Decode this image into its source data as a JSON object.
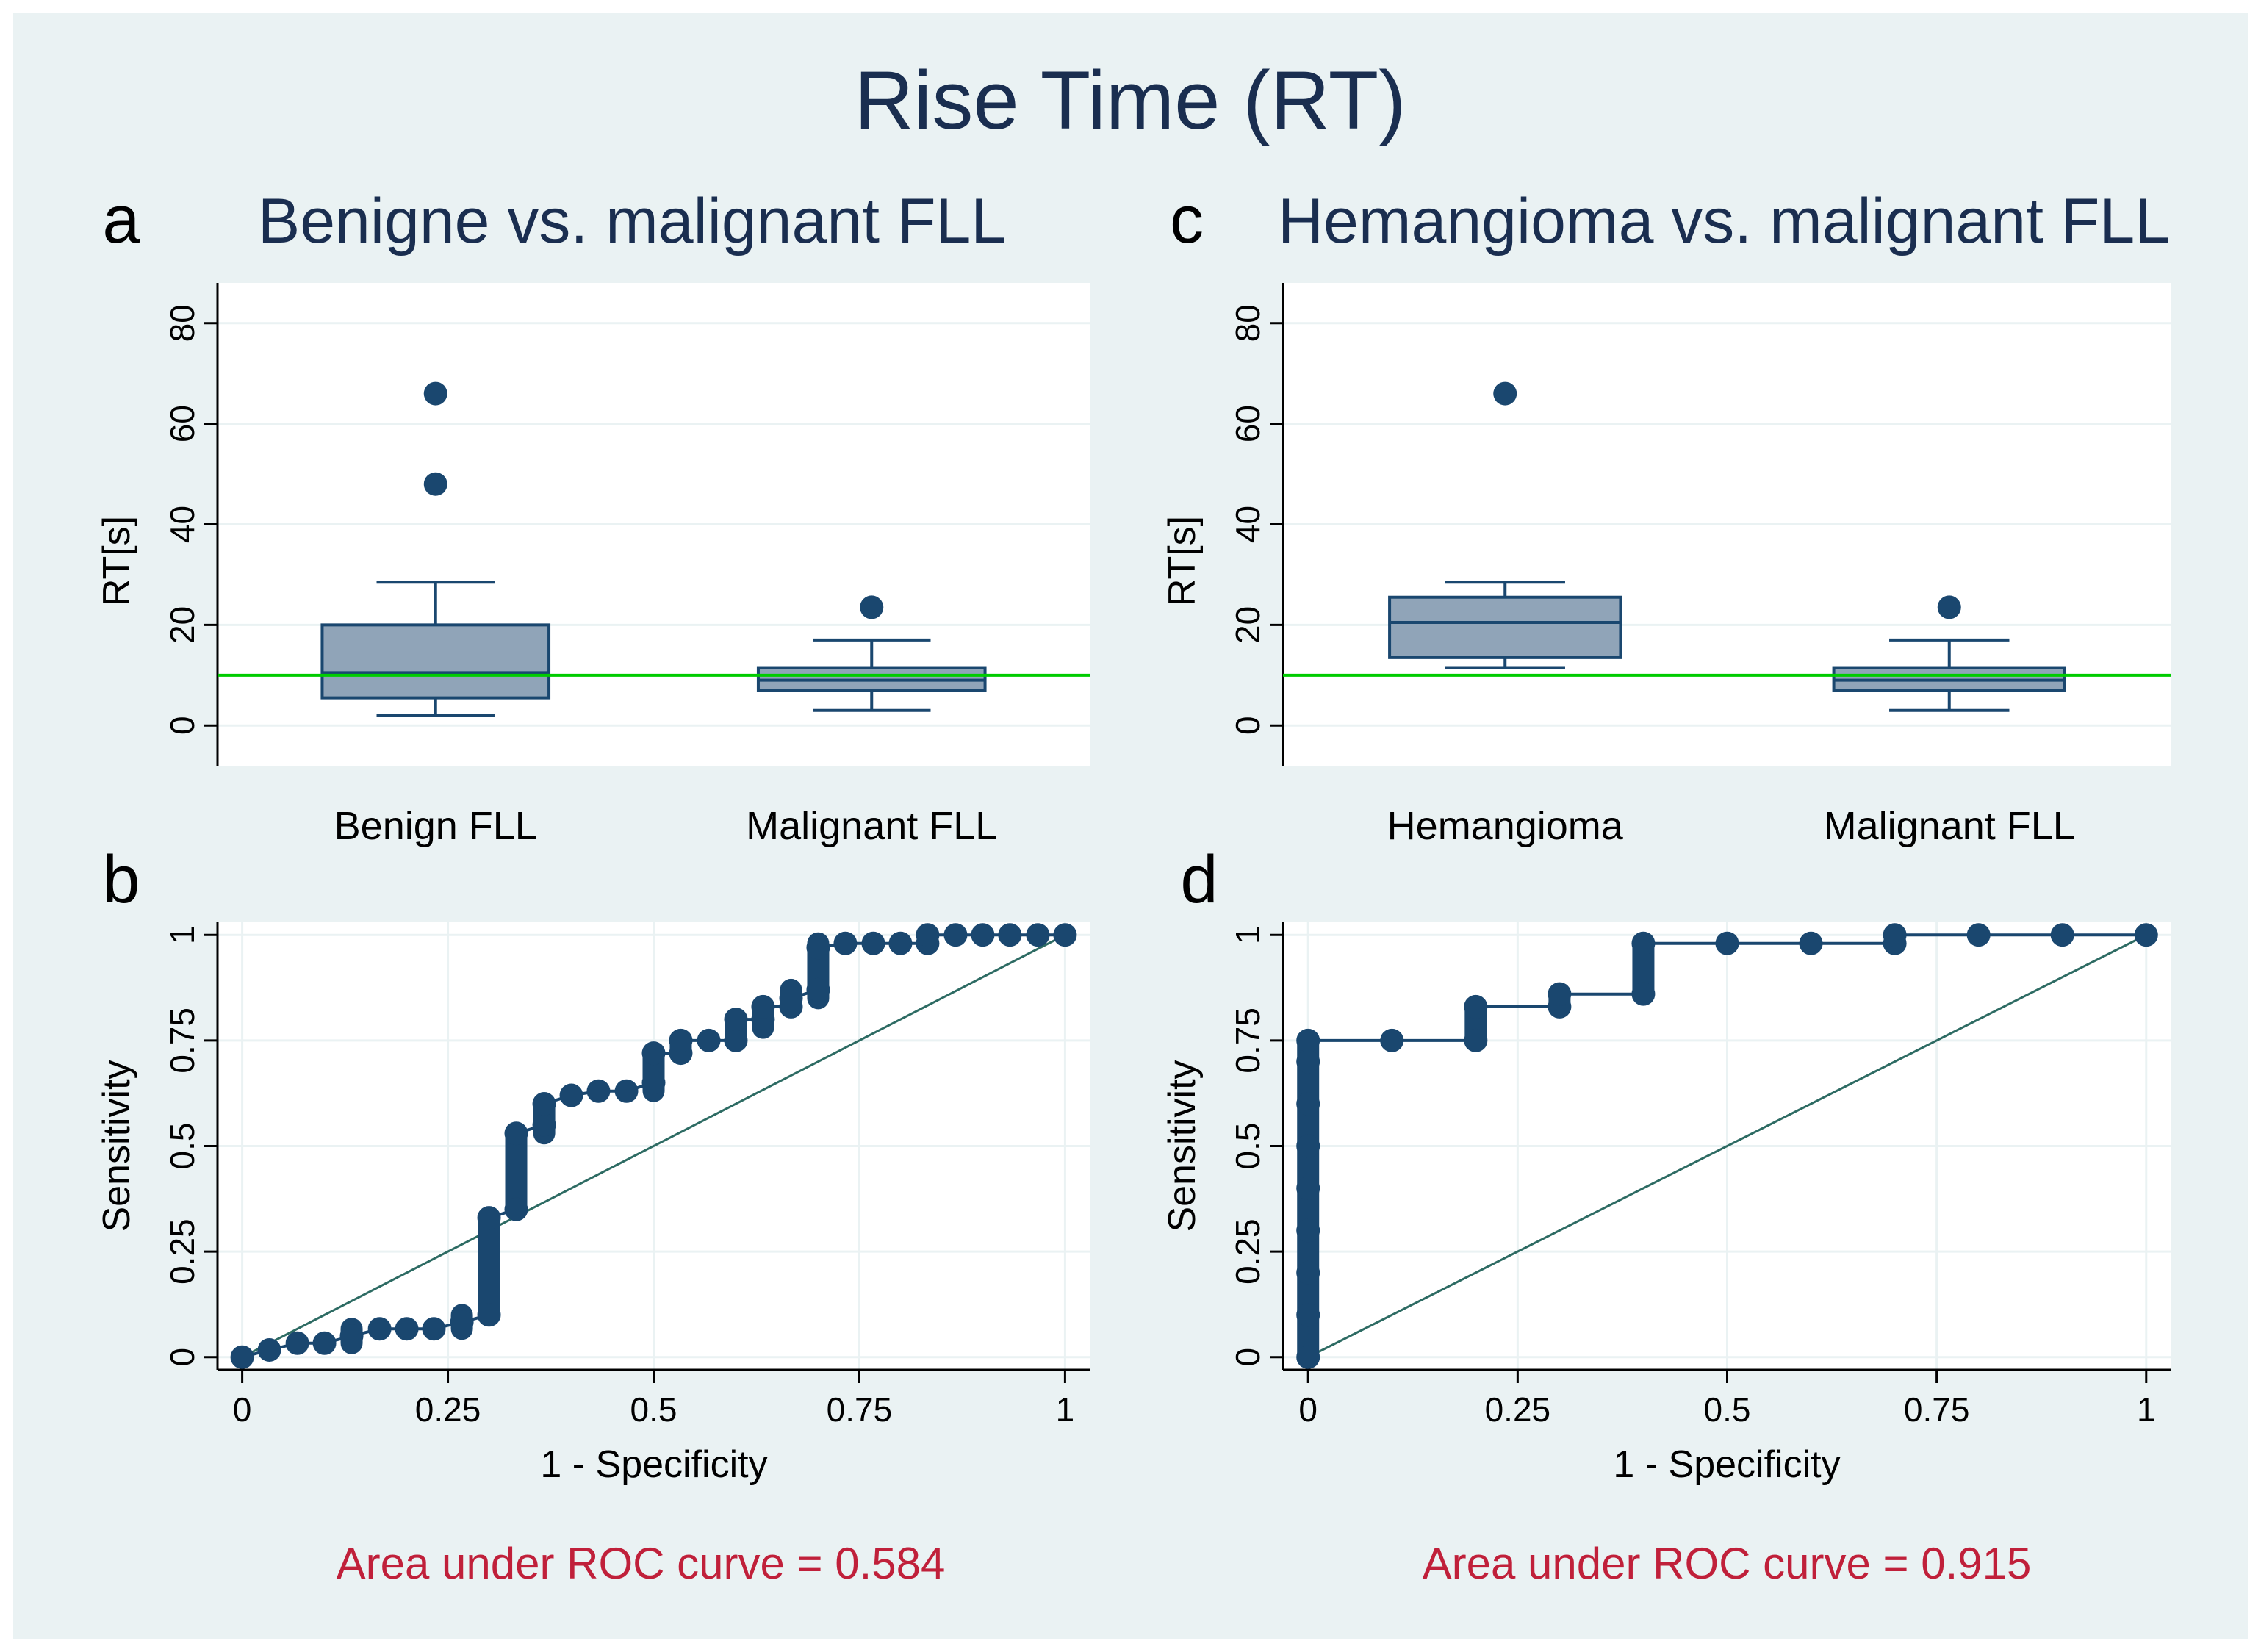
{
  "figure": {
    "title": "Rise Time (RT)",
    "colors": {
      "background": "#EAF2F3",
      "plot_background": "#FFFFFF",
      "text": "#1A2E50",
      "marker": "#1A476F",
      "box_fill": "#90A4B8",
      "reference_line": "#00CC00",
      "diagonal": "#2D6B63",
      "auc_text": "#C0203A",
      "grid": "#EAF2F3"
    }
  },
  "chart_data": [
    {
      "id": "a",
      "panel_letter": "a",
      "type": "box",
      "title": "Benigne vs. malignant FLL",
      "ylabel": "RT[s]",
      "xlabel": "",
      "ylim": [
        -8,
        88
      ],
      "yticks": [
        0,
        20,
        40,
        60,
        80
      ],
      "grid": true,
      "reference_line": 10,
      "boxes": [
        {
          "category": "Benign FLL",
          "whisker_low": 2,
          "q1": 5.5,
          "median": 10.5,
          "q3": 20,
          "whisker_high": 28.5,
          "outliers": [
            66,
            48
          ]
        },
        {
          "category": "Malignant FLL",
          "whisker_low": 3,
          "q1": 7,
          "median": 9,
          "q3": 11.5,
          "whisker_high": 17,
          "outliers": [
            23.5
          ]
        }
      ]
    },
    {
      "id": "c",
      "panel_letter": "c",
      "type": "box",
      "title": "Hemangioma vs. malignant FLL",
      "ylabel": "RT[s]",
      "xlabel": "",
      "ylim": [
        -8,
        88
      ],
      "yticks": [
        0,
        20,
        40,
        60,
        80
      ],
      "grid": true,
      "reference_line": 10,
      "boxes": [
        {
          "category": "Hemangioma",
          "whisker_low": 11.5,
          "q1": 13.5,
          "median": 20.5,
          "q3": 25.5,
          "whisker_high": 28.5,
          "outliers": [
            66
          ]
        },
        {
          "category": "Malignant FLL",
          "whisker_low": 3,
          "q1": 7,
          "median": 9,
          "q3": 11.5,
          "whisker_high": 17,
          "outliers": [
            23.5
          ]
        }
      ]
    },
    {
      "id": "b",
      "panel_letter": "b",
      "type": "scatter",
      "title": "",
      "xlabel": "1 - Specificity",
      "ylabel": "Sensitivity",
      "xlim": [
        -0.03,
        1.03
      ],
      "ylim": [
        -0.03,
        1.03
      ],
      "xticks": [
        0,
        0.25,
        0.5,
        0.75,
        1
      ],
      "yticks": [
        0,
        0.25,
        0.5,
        0.75,
        1
      ],
      "tick_labels": [
        "0",
        "0.25",
        "0.5",
        "0.75",
        "1"
      ],
      "grid": true,
      "diagonal": true,
      "annotation": "Area under ROC curve = 0.584",
      "points": [
        [
          0,
          0
        ],
        [
          0.033,
          0.017
        ],
        [
          0.067,
          0.033
        ],
        [
          0.1,
          0.033
        ],
        [
          0.133,
          0.05
        ],
        [
          0.167,
          0.067
        ],
        [
          0.2,
          0.067
        ],
        [
          0.233,
          0.067
        ],
        [
          0.267,
          0.083
        ],
        [
          0.3,
          0.1
        ],
        [
          0.3,
          0.33
        ],
        [
          0.333,
          0.35
        ],
        [
          0.333,
          0.53
        ],
        [
          0.367,
          0.55
        ],
        [
          0.367,
          0.6
        ],
        [
          0.4,
          0.62
        ],
        [
          0.433,
          0.63
        ],
        [
          0.467,
          0.63
        ],
        [
          0.5,
          0.65
        ],
        [
          0.5,
          0.72
        ],
        [
          0.533,
          0.72
        ],
        [
          0.533,
          0.75
        ],
        [
          0.567,
          0.75
        ],
        [
          0.6,
          0.75
        ],
        [
          0.6,
          0.8
        ],
        [
          0.633,
          0.8
        ],
        [
          0.633,
          0.83
        ],
        [
          0.667,
          0.83
        ],
        [
          0.667,
          0.85
        ],
        [
          0.7,
          0.87
        ],
        [
          0.7,
          0.97
        ],
        [
          0.733,
          0.98
        ],
        [
          0.767,
          0.98
        ],
        [
          0.8,
          0.98
        ],
        [
          0.833,
          0.98
        ],
        [
          0.833,
          1
        ],
        [
          0.867,
          1
        ],
        [
          0.9,
          1
        ],
        [
          0.933,
          1
        ],
        [
          0.967,
          1
        ],
        [
          1,
          1
        ]
      ],
      "vertical_runs": [
        [
          0.133,
          0.033,
          0.067
        ],
        [
          0.267,
          0.067,
          0.1
        ],
        [
          0.3,
          0.1,
          0.33
        ],
        [
          0.333,
          0.35,
          0.53
        ],
        [
          0.367,
          0.53,
          0.6
        ],
        [
          0.5,
          0.63,
          0.72
        ],
        [
          0.533,
          0.72,
          0.75
        ],
        [
          0.6,
          0.75,
          0.8
        ],
        [
          0.633,
          0.78,
          0.83
        ],
        [
          0.667,
          0.83,
          0.87
        ],
        [
          0.7,
          0.85,
          0.98
        ]
      ]
    },
    {
      "id": "d",
      "panel_letter": "d",
      "type": "scatter",
      "title": "",
      "xlabel": "1 - Specificity",
      "ylabel": "Sensitivity",
      "xlim": [
        -0.03,
        1.03
      ],
      "ylim": [
        -0.03,
        1.03
      ],
      "xticks": [
        0,
        0.25,
        0.5,
        0.75,
        1
      ],
      "yticks": [
        0,
        0.25,
        0.5,
        0.75,
        1
      ],
      "tick_labels": [
        "0",
        "0.25",
        "0.5",
        "0.75",
        "1"
      ],
      "grid": true,
      "diagonal": true,
      "annotation": "Area under ROC curve = 0.915",
      "points": [
        [
          0,
          0
        ],
        [
          0,
          0.1
        ],
        [
          0,
          0.2
        ],
        [
          0,
          0.3
        ],
        [
          0,
          0.4
        ],
        [
          0,
          0.5
        ],
        [
          0,
          0.6
        ],
        [
          0,
          0.7
        ],
        [
          0,
          0.75
        ],
        [
          0.1,
          0.75
        ],
        [
          0.2,
          0.75
        ],
        [
          0.2,
          0.83
        ],
        [
          0.3,
          0.83
        ],
        [
          0.3,
          0.86
        ],
        [
          0.4,
          0.86
        ],
        [
          0.4,
          0.98
        ],
        [
          0.5,
          0.98
        ],
        [
          0.6,
          0.98
        ],
        [
          0.7,
          0.98
        ],
        [
          0.7,
          1
        ],
        [
          0.8,
          1
        ],
        [
          0.9,
          1
        ],
        [
          1,
          1
        ]
      ],
      "vertical_runs": [
        [
          0,
          0,
          0.75
        ],
        [
          0.2,
          0.75,
          0.83
        ],
        [
          0.3,
          0.83,
          0.86
        ],
        [
          0.4,
          0.86,
          0.98
        ],
        [
          0.7,
          0.98,
          1
        ]
      ]
    }
  ]
}
